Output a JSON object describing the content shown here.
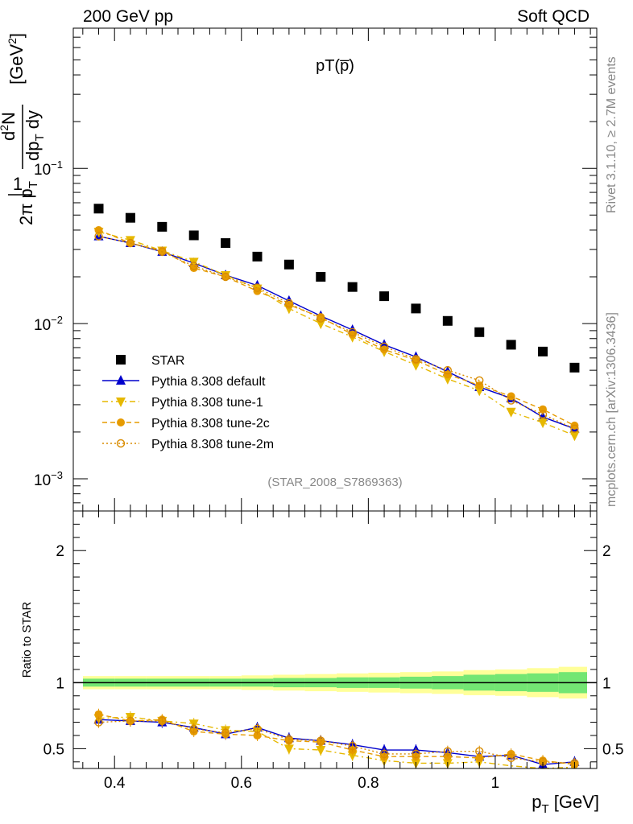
{
  "header": {
    "left": "200 GeV pp",
    "right": "Soft QCD"
  },
  "side_texts": {
    "rivet": "Rivet 3.1.10, ≥ 2.7M events",
    "mcplots": "mcplots.cern.ch [arXiv:1306.3436]"
  },
  "colors": {
    "star": "#000000",
    "default": "#0000cc",
    "tune1": "#e6b800",
    "tune2c": "#e69b00",
    "tune2m": "#d98c00",
    "band_inner": "#73e673",
    "band_outer": "#ffff99"
  },
  "chart_data": [
    {
      "type": "scatter",
      "title": "pT(p̅)",
      "reference": "(STAR_2008_S7869363)",
      "xlabel": "",
      "ylabel": "1/(2π p_T) d²N/(dp_T dy) [GeV²]",
      "yscale": "log",
      "xlim": [
        0.335,
        1.16
      ],
      "ylim": [
        0.00062,
        0.8
      ],
      "yticklabels": [
        "10⁻³",
        "10⁻²",
        "10⁻¹"
      ],
      "x": [
        0.375,
        0.425,
        0.475,
        0.525,
        0.575,
        0.625,
        0.675,
        0.725,
        0.775,
        0.825,
        0.875,
        0.925,
        0.975,
        1.025,
        1.075,
        1.125
      ],
      "legend": "left",
      "series": [
        {
          "name": "STAR",
          "marker": "square",
          "values": [
            0.055,
            0.048,
            0.042,
            0.037,
            0.033,
            0.027,
            0.024,
            0.02,
            0.0172,
            0.015,
            0.0125,
            0.0104,
            0.0088,
            0.0073,
            0.0066,
            0.0052
          ]
        },
        {
          "name": "Pythia 8.308 default",
          "marker": "triangle-up",
          "values": [
            0.0365,
            0.033,
            0.029,
            0.0245,
            0.0205,
            0.0176,
            0.014,
            0.0112,
            0.0091,
            0.0073,
            0.0061,
            0.0049,
            0.0039,
            0.0033,
            0.0025,
            0.0021
          ]
        },
        {
          "name": "Pythia 8.308 tune-1",
          "marker": "triangle-down",
          "values": [
            0.039,
            0.0345,
            0.0295,
            0.025,
            0.0205,
            0.0168,
            0.0125,
            0.01,
            0.0082,
            0.0066,
            0.0054,
            0.0044,
            0.0037,
            0.0027,
            0.0023,
            0.0019
          ]
        },
        {
          "name": "Pythia 8.308 tune-2c",
          "marker": "circle",
          "values": [
            0.04,
            0.033,
            0.0295,
            0.0228,
            0.02,
            0.0162,
            0.0132,
            0.011,
            0.0085,
            0.0068,
            0.0058,
            0.0047,
            0.004,
            0.0034,
            0.0028,
            0.0022
          ]
        },
        {
          "name": "Pythia 8.308 tune-2m",
          "marker": "open-circle",
          "values": [
            0.0365,
            0.033,
            0.029,
            0.0235,
            0.02,
            0.017,
            0.0135,
            0.0108,
            0.0088,
            0.0071,
            0.0059,
            0.005,
            0.0043,
            0.0032,
            0.0026,
            0.0021
          ]
        }
      ]
    },
    {
      "type": "line",
      "xlabel": "p_T [GeV]",
      "ylabel": "Ratio to STAR",
      "xlim": [
        0.335,
        1.16
      ],
      "ylim": [
        0.35,
        2.3
      ],
      "xticklabels": [
        "0.4",
        "0.6",
        "0.8",
        "1"
      ],
      "yticklabels": [
        "0.5",
        "1",
        "2"
      ],
      "x": [
        0.375,
        0.425,
        0.475,
        0.525,
        0.575,
        0.625,
        0.675,
        0.725,
        0.775,
        0.825,
        0.875,
        0.925,
        0.975,
        1.025,
        1.075,
        1.125
      ],
      "band_inner_halfwidth": [
        0.03,
        0.03,
        0.03,
        0.03,
        0.03,
        0.03,
        0.035,
        0.035,
        0.04,
        0.04,
        0.045,
        0.05,
        0.06,
        0.065,
        0.07,
        0.08
      ],
      "band_outer_halfwidth": [
        0.05,
        0.05,
        0.05,
        0.05,
        0.05,
        0.055,
        0.06,
        0.065,
        0.07,
        0.075,
        0.08,
        0.085,
        0.095,
        0.1,
        0.11,
        0.12
      ],
      "series": [
        {
          "name": "Pythia 8.308 default",
          "values": [
            0.72,
            0.71,
            0.7,
            0.66,
            0.61,
            0.66,
            0.58,
            0.56,
            0.53,
            0.49,
            0.49,
            0.47,
            0.44,
            0.45,
            0.38,
            0.4
          ]
        },
        {
          "name": "Pythia 8.308 tune-1",
          "values": [
            0.73,
            0.74,
            0.71,
            0.69,
            0.64,
            0.63,
            0.5,
            0.49,
            0.45,
            0.41,
            0.39,
            0.39,
            0.4,
            0.37,
            0.35,
            0.36
          ]
        },
        {
          "name": "Pythia 8.308 tune-2c",
          "values": [
            0.76,
            0.71,
            0.72,
            0.63,
            0.61,
            0.6,
            0.56,
            0.55,
            0.49,
            0.44,
            0.44,
            0.44,
            0.43,
            0.46,
            0.41,
            0.38
          ]
        },
        {
          "name": "Pythia 8.308 tune-2m",
          "values": [
            0.7,
            0.71,
            0.71,
            0.65,
            0.62,
            0.65,
            0.57,
            0.56,
            0.52,
            0.46,
            0.46,
            0.48,
            0.48,
            0.43,
            0.4,
            0.39
          ]
        }
      ]
    }
  ]
}
